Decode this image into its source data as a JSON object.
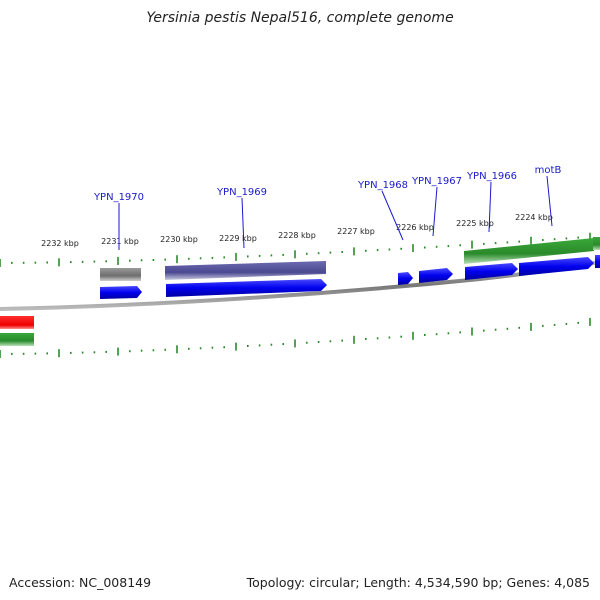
{
  "title": "Yersinia pestis Nepal516, complete genome",
  "footer": {
    "accession": "Accession: NC_008149",
    "topology": "Topology: circular; Length: 4,534,590 bp; Genes: 4,085"
  },
  "scale_labels": [
    "2232 kbp",
    "2231 kbp",
    "2230 kbp",
    "2229 kbp",
    "2228 kbp",
    "2227 kbp",
    "2226 kbp",
    "2225 kbp",
    "2224 kbp"
  ],
  "gene_labels": [
    "YPN_1970",
    "YPN_1969",
    "YPN_1968",
    "YPN_1967",
    "YPN_1966",
    "motB"
  ],
  "colors": {
    "cds_blue": "#0000ee",
    "cog_gray": "#6e6e6e",
    "cog_purple": "#4a4890",
    "cog_green": "#2a8a2a",
    "cog_red": "#ee0000",
    "backbone": "#888888",
    "tick_green": "#2a8a2a",
    "label_blue": "#1a1acc"
  }
}
